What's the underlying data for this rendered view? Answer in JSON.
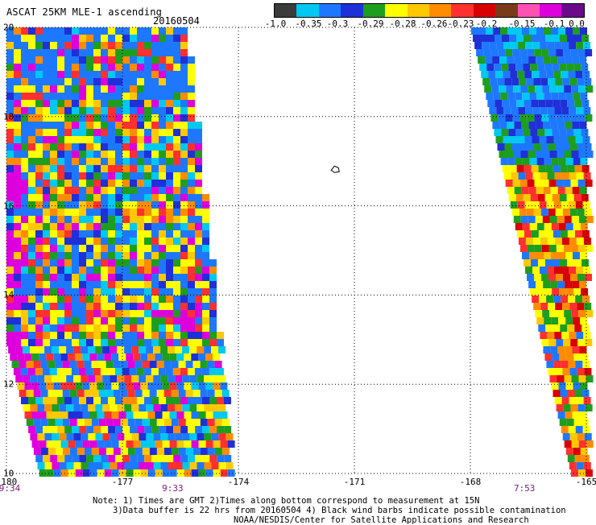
{
  "header": {
    "title": "ASCAT 25KM MLE-1 ascending",
    "date": "20160504"
  },
  "colorbar": {
    "colors": [
      "#3b3b3b",
      "#00c8f0",
      "#1e78ff",
      "#1f30d8",
      "#1e9e1e",
      "#ffff00",
      "#ffc800",
      "#ff8c00",
      "#ff3030",
      "#d80000",
      "#7a3a1a",
      "#ff50b4",
      "#dd00dd",
      "#6a0a8a"
    ],
    "labels": [
      "-1.0",
      "-0.35",
      "-0.3",
      "-0.29",
      "-0.28",
      "-0.26",
      "-0.23",
      "-0.2",
      "-0.15",
      "-0.1",
      "0.0"
    ]
  },
  "axes": {
    "x_ticks": [
      "-180",
      "-177",
      "-174",
      "-171",
      "-168",
      "-165"
    ],
    "y_ticks": [
      "20",
      "18",
      "16",
      "14",
      "12",
      "10"
    ],
    "xlim": [
      -180,
      -165
    ],
    "ylim": [
      10,
      20
    ]
  },
  "times": [
    {
      "label": "9:34",
      "lon": -180
    },
    {
      "label": "9:33",
      "lon": -175.7
    },
    {
      "label": "7:53",
      "lon": -166.6
    }
  ],
  "notes": {
    "line1": "Note: 1) Times are GMT 2)Times along bottom correspond to measurement at 15N",
    "line2": "3)Data buffer is 22 hrs from 20160504 4) Black wind barbs indicate possible contamination",
    "line3": "NOAA/NESDIS/Center for Satellite Applications and Research"
  }
}
